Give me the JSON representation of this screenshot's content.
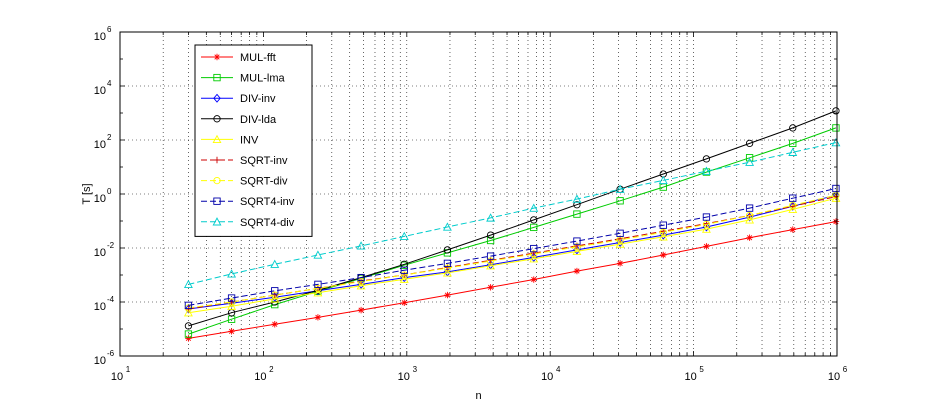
{
  "chart_data": {
    "type": "line",
    "xscale": "log",
    "yscale": "log",
    "xlim": [
      10,
      1000000
    ],
    "ylim": [
      1e-06,
      1000000
    ],
    "xlabel": "n",
    "ylabel": "T [s]",
    "grid": true,
    "legend_position": "top-left",
    "x_tick_exponents": [
      1,
      2,
      3,
      4,
      5,
      6
    ],
    "y_tick_exponents": [
      -6,
      -4,
      -2,
      0,
      2,
      4,
      6
    ],
    "tick_base": "10",
    "x": [
      30,
      60,
      120,
      240,
      480,
      960,
      1920,
      3840,
      7680,
      15360,
      30720,
      61440,
      122880,
      245760,
      491520,
      983040
    ],
    "series": [
      {
        "name": "MUL-fft",
        "color": "#ff0000",
        "marker": "star",
        "dash": "solid",
        "values": [
          4.5e-06,
          8.2e-06,
          1.5e-05,
          2.7e-05,
          5e-05,
          9.35e-05,
          0.00018,
          0.00035,
          0.00068,
          0.0014,
          0.0027,
          0.0055,
          0.0115,
          0.024,
          0.048,
          0.095
        ]
      },
      {
        "name": "MUL-lma",
        "color": "#00cc00",
        "marker": "square",
        "dash": "solid",
        "values": [
          6.5e-06,
          2.3e-05,
          8e-05,
          0.00025,
          0.00075,
          0.0023,
          0.0066,
          0.019,
          0.058,
          0.18,
          0.56,
          1.8,
          6.5,
          22,
          75,
          280
        ]
      },
      {
        "name": "DIV-inv",
        "color": "#0000ff",
        "marker": "diamond",
        "dash": "solid",
        "values": [
          5.5e-05,
          9e-05,
          0.00015,
          0.00026,
          0.00045,
          0.0008,
          0.0013,
          0.0024,
          0.0045,
          0.0085,
          0.016,
          0.03,
          0.06,
          0.14,
          0.35,
          0.9
        ]
      },
      {
        "name": "DIV-lda",
        "color": "#000000",
        "marker": "circle",
        "dash": "solid",
        "values": [
          1.3e-05,
          4e-05,
          0.0001,
          0.00027,
          0.0008,
          0.0025,
          0.0085,
          0.03,
          0.11,
          0.4,
          1.5,
          5.5,
          20,
          75,
          280,
          1200
        ]
      },
      {
        "name": "INV",
        "color": "#ffff00",
        "marker": "triangle",
        "dash": "solid",
        "values": [
          4e-05,
          7e-05,
          0.00013,
          0.00022,
          0.0004,
          0.0007,
          0.0012,
          0.0022,
          0.004,
          0.0075,
          0.014,
          0.026,
          0.05,
          0.11,
          0.27,
          0.7
        ]
      },
      {
        "name": "SQRT-inv",
        "color": "#cc0000",
        "marker": "plus",
        "dash": "dashed",
        "values": [
          5.5e-05,
          0.0001,
          0.00018,
          0.00032,
          0.0006,
          0.001,
          0.0019,
          0.0035,
          0.0065,
          0.012,
          0.022,
          0.042,
          0.08,
          0.16,
          0.35,
          0.8
        ]
      },
      {
        "name": "SQRT-div",
        "color": "#ffff00",
        "marker": "circle",
        "dash": "dashed",
        "values": [
          6e-05,
          0.0001,
          0.00018,
          0.00032,
          0.00057,
          0.001,
          0.0018,
          0.0033,
          0.006,
          0.011,
          0.02,
          0.038,
          0.075,
          0.16,
          0.38,
          0.9
        ]
      },
      {
        "name": "SQRT4-inv",
        "color": "#0000aa",
        "marker": "square",
        "dash": "dashed",
        "values": [
          7.5e-05,
          0.00014,
          0.00026,
          0.00045,
          0.0008,
          0.0015,
          0.0027,
          0.005,
          0.0095,
          0.018,
          0.035,
          0.07,
          0.14,
          0.3,
          0.7,
          1.6
        ]
      },
      {
        "name": "SQRT4-div",
        "color": "#00cccc",
        "marker": "triangle",
        "dash": "dashed",
        "values": [
          0.00045,
          0.0011,
          0.0025,
          0.0055,
          0.012,
          0.027,
          0.06,
          0.13,
          0.3,
          0.65,
          1.5,
          3.2,
          7,
          15,
          35,
          80
        ]
      }
    ]
  }
}
